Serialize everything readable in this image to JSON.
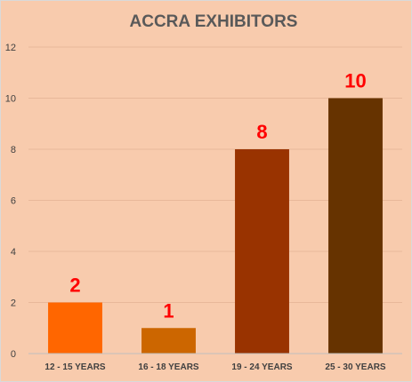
{
  "chart_data": {
    "type": "bar",
    "title": "ACCRA EXHIBITORS",
    "categories": [
      "12 - 15 YEARS",
      "16 - 18 YEARS",
      "19 - 24 YEARS",
      "25 - 30 YEARS"
    ],
    "values": [
      2,
      1,
      8,
      10
    ],
    "data_labels": [
      "2",
      "1",
      "8",
      "10"
    ],
    "bar_colors": [
      "#ff6600",
      "#cc6600",
      "#993300",
      "#663300"
    ],
    "label_color": "#ff0000",
    "background_color": "#f8cbad",
    "gridline_color": "#e8b89a",
    "ylim": [
      0,
      12
    ],
    "yticks": [
      0,
      2,
      4,
      6,
      8,
      10,
      12
    ],
    "xlabel": "",
    "ylabel": "",
    "grid": true,
    "legend": "none"
  }
}
